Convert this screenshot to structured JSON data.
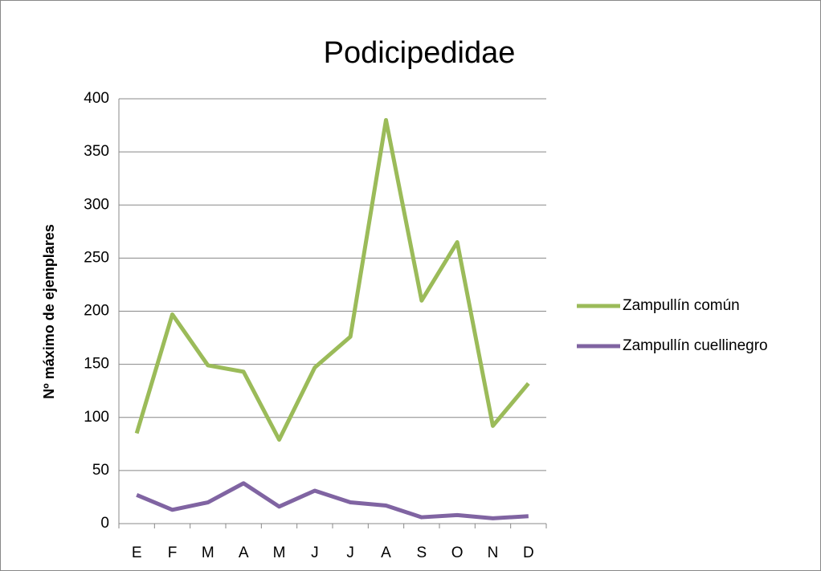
{
  "chart_data": {
    "type": "line",
    "title": "Podicipedidae",
    "y_label": "Nº máximo de ejemplares",
    "categories": [
      "E",
      "F",
      "M",
      "A",
      "M",
      "J",
      "J",
      "A",
      "S",
      "O",
      "N",
      "D"
    ],
    "series": [
      {
        "name": "Zampullín común",
        "color": "#9bbb59",
        "values": [
          85,
          197,
          149,
          143,
          79,
          147,
          176,
          380,
          210,
          265,
          92,
          132
        ]
      },
      {
        "name": "Zampullín cuellinegro",
        "color": "#8064a2",
        "values": [
          27,
          13,
          20,
          38,
          16,
          31,
          20,
          17,
          6,
          8,
          5,
          7
        ]
      }
    ],
    "ylim": [
      0,
      400
    ],
    "yticks": [
      0,
      50,
      100,
      150,
      200,
      250,
      300,
      350,
      400
    ],
    "grid": true,
    "legend": "right"
  }
}
